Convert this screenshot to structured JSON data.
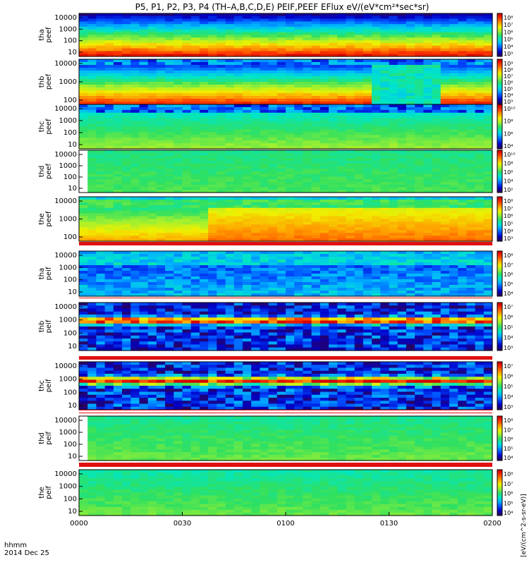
{
  "title": "P5, P1, P2, P3, P4 (TH–A,B,C,D,E) PEIF,PEEF EFlux eV/(eV*cm²*sec*sr)",
  "colorbar_units": "[eV/(cm^2-s-sr-eV)]",
  "xaxis": {
    "ticks": [
      "0000",
      "0030",
      "0100",
      "0130",
      "0200"
    ],
    "row_label": "hhmm",
    "date": "2014 Dec 25"
  },
  "colors": {
    "background": "#ffffff",
    "fill_value_red": "#e01010",
    "colormap": [
      "#2a0060",
      "#0000c8",
      "#0050ff",
      "#00b4ff",
      "#00e6c8",
      "#30e060",
      "#a0f030",
      "#f0f000",
      "#ffa000",
      "#ff4000",
      "#d80000"
    ]
  },
  "chart_data": [
    {
      "type": "heatmap",
      "probe": "tha",
      "product": "peef",
      "ylabel": "tha peef",
      "yticks": [
        "10000",
        "1000",
        "100",
        "10"
      ],
      "cbar_ticks": [
        "10⁸",
        "10⁷",
        "10⁶",
        "10⁵",
        "10⁴",
        "10³"
      ],
      "ylim_eV": [
        7,
        30000
      ],
      "yscale": "log",
      "xlim": [
        "0000",
        "0200"
      ]
    },
    {
      "type": "heatmap",
      "probe": "thb",
      "product": "peef",
      "ylabel": "thb peef",
      "yticks": [
        "10000",
        "1000",
        "100"
      ],
      "cbar_ticks": [
        "10⁹",
        "10⁸",
        "10⁷",
        "10⁶",
        "10⁵",
        "10⁴",
        "10³"
      ],
      "ylim_eV": [
        7,
        30000
      ],
      "yscale": "log",
      "xlim": [
        "0000",
        "0200"
      ]
    },
    {
      "type": "heatmap",
      "probe": "thc",
      "product": "peef",
      "ylabel": "thc peef",
      "yticks": [
        "10000",
        "1000",
        "100",
        "10"
      ],
      "cbar_ticks": [
        "10¹⁰",
        "10⁸",
        "10⁶",
        "10⁴"
      ],
      "ylim_eV": [
        7,
        30000
      ],
      "yscale": "log",
      "xlim": [
        "0000",
        "0200"
      ]
    },
    {
      "type": "heatmap",
      "probe": "thd",
      "product": "peef",
      "ylabel": "thd peef",
      "yticks": [
        "10000",
        "1000",
        "100",
        "10"
      ],
      "cbar_ticks": [
        "10¹⁰",
        "10⁸",
        "10⁶",
        "10⁴",
        "10²"
      ],
      "ylim_eV": [
        7,
        30000
      ],
      "yscale": "log",
      "xlim": [
        "0000",
        "0200"
      ]
    },
    {
      "type": "heatmap",
      "probe": "the",
      "product": "peef",
      "ylabel": "the peef",
      "yticks": [
        "10000",
        "1000",
        "100"
      ],
      "cbar_ticks": [
        "10⁸",
        "10⁷",
        "10⁶",
        "10⁵",
        "10⁴",
        "10³"
      ],
      "ylim_eV": [
        7,
        30000
      ],
      "yscale": "log",
      "xlim": [
        "0000",
        "0200"
      ]
    },
    {
      "type": "heatmap",
      "probe": "tha",
      "product": "peif",
      "ylabel": "tha peif",
      "yticks": [
        "10000",
        "1000",
        "100",
        "10"
      ],
      "cbar_ticks": [
        "10⁸",
        "10⁷",
        "10⁶",
        "10⁵",
        "10⁴"
      ],
      "ylim_eV": [
        7,
        30000
      ],
      "yscale": "log",
      "xlim": [
        "0000",
        "0200"
      ]
    },
    {
      "type": "heatmap",
      "probe": "thb",
      "product": "peif",
      "ylabel": "thb peif",
      "yticks": [
        "10000",
        "1000",
        "100",
        "10"
      ],
      "cbar_ticks": [
        "10⁷",
        "10⁶",
        "10⁵",
        "10⁴",
        "10³"
      ],
      "ylim_eV": [
        7,
        30000
      ],
      "yscale": "log",
      "xlim": [
        "0000",
        "0200"
      ]
    },
    {
      "type": "heatmap",
      "probe": "thc",
      "product": "peif",
      "ylabel": "thc peif",
      "yticks": [
        "10000",
        "1000",
        "100",
        "10"
      ],
      "cbar_ticks": [
        "10⁷",
        "10⁶",
        "10⁵",
        "10⁴",
        "10³"
      ],
      "ylim_eV": [
        7,
        30000
      ],
      "yscale": "log",
      "xlim": [
        "0000",
        "0200"
      ]
    },
    {
      "type": "heatmap",
      "probe": "thd",
      "product": "peif",
      "ylabel": "thd peif",
      "yticks": [
        "10000",
        "1000",
        "100",
        "10"
      ],
      "cbar_ticks": [
        "10⁸",
        "10⁷",
        "10⁶",
        "10⁵",
        "10⁴"
      ],
      "ylim_eV": [
        7,
        30000
      ],
      "yscale": "log",
      "xlim": [
        "0000",
        "0200"
      ]
    },
    {
      "type": "heatmap",
      "probe": "the",
      "product": "peif",
      "ylabel": "the peif",
      "yticks": [
        "10000",
        "1000",
        "100",
        "10"
      ],
      "cbar_ticks": [
        "10⁸",
        "10⁷",
        "10⁶",
        "10⁵",
        "10⁴"
      ],
      "ylim_eV": [
        7,
        30000
      ],
      "yscale": "log",
      "xlim": [
        "0000",
        "0200"
      ]
    }
  ]
}
